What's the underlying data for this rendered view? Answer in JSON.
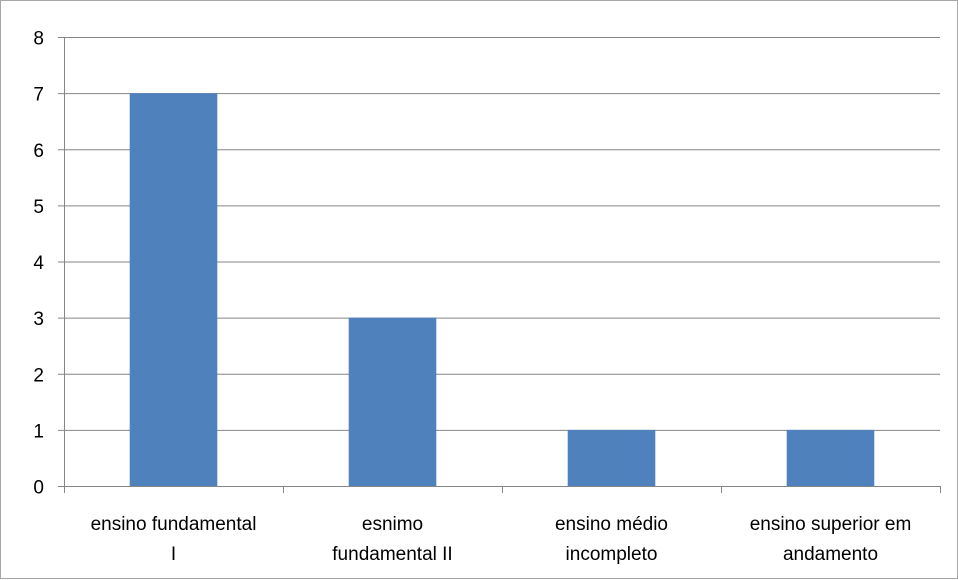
{
  "chart_data": {
    "type": "bar",
    "categories": [
      [
        "ensino fundamental",
        "I"
      ],
      [
        "esnimo",
        "fundamental II"
      ],
      [
        "ensino médio",
        "incompleto"
      ],
      [
        "ensino superior em",
        "andamento"
      ]
    ],
    "values": [
      7,
      3,
      1,
      1
    ],
    "yticks": [
      "0",
      "1",
      "2",
      "3",
      "4",
      "5",
      "6",
      "7",
      "8"
    ],
    "ylim": [
      0,
      8
    ],
    "grid": true,
    "legend": "none",
    "colors": {
      "bar": "#4f81bd",
      "grid": "#868686",
      "axis": "#868686"
    }
  }
}
